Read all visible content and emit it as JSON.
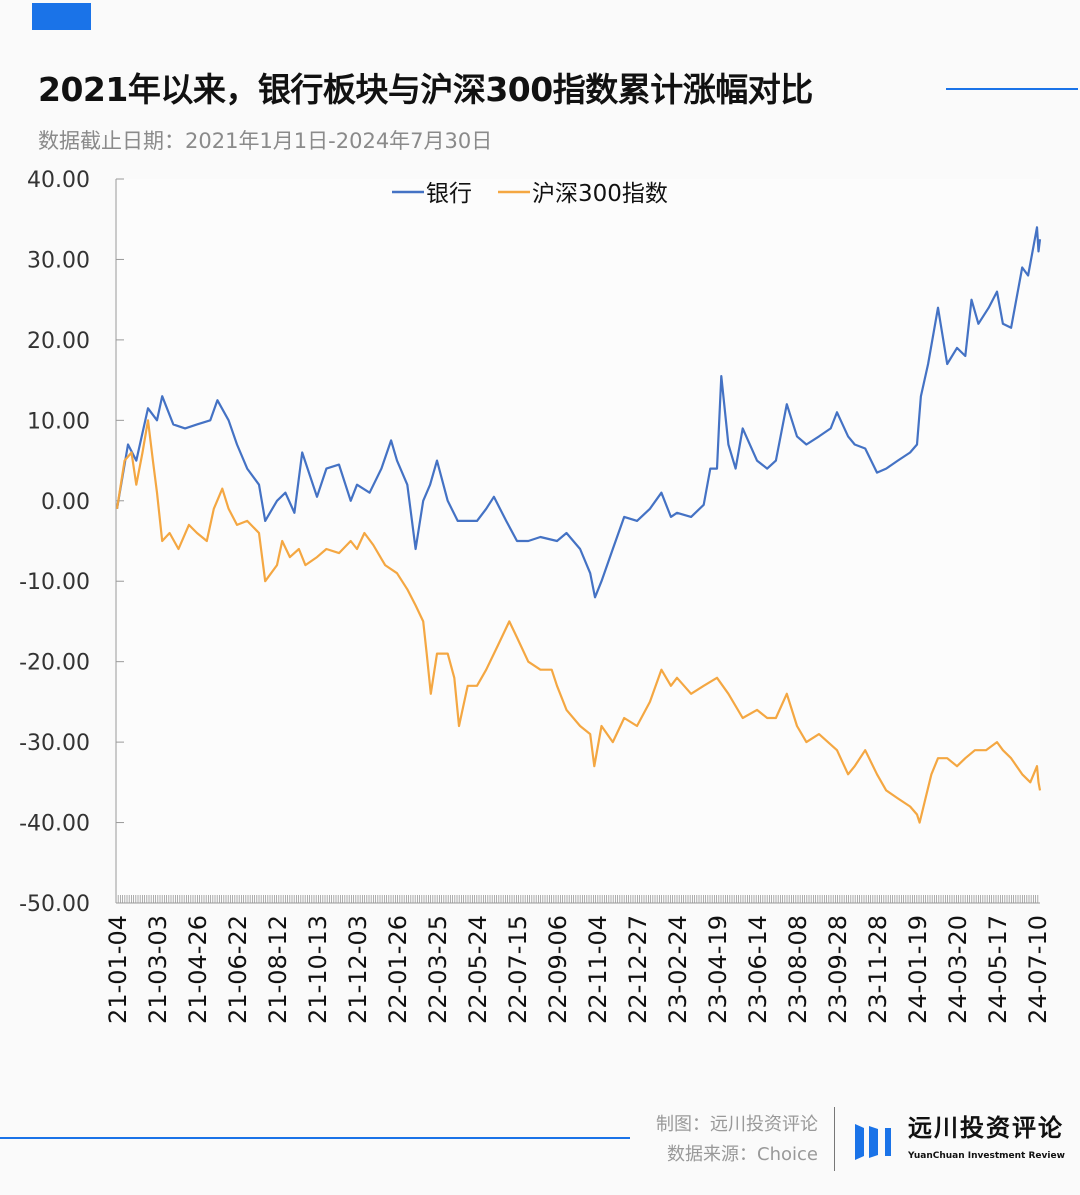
{
  "header": {
    "title": "2021年以来，银行板块与沪深300指数累计涨幅对比",
    "subtitle": "数据截止日期：2021年1月1日-2024年7月30日",
    "accent_color": "#1a73e8"
  },
  "footer": {
    "maker": "制图：远川投资评论",
    "source": "数据来源：Choice",
    "logo_cn": "远川投资评论",
    "logo_en": "YuanChuan Investment Review"
  },
  "chart_data": {
    "type": "line",
    "title": "",
    "xlabel": "",
    "ylabel": "",
    "ylim": [
      -50,
      40
    ],
    "y_ticks": [
      "40.00",
      "30.00",
      "20.00",
      "10.00",
      "0.00",
      "-10.00",
      "-20.00",
      "-30.00",
      "-40.00",
      "-50.00"
    ],
    "y_tick_values": [
      40,
      30,
      20,
      10,
      0,
      -10,
      -20,
      -30,
      -40,
      -50
    ],
    "x_ticks": [
      "21-01-04",
      "21-03-03",
      "21-04-26",
      "21-06-22",
      "21-08-12",
      "21-10-13",
      "21-12-03",
      "22-01-26",
      "22-03-25",
      "22-05-24",
      "22-07-15",
      "22-09-06",
      "22-11-04",
      "22-12-27",
      "23-02-24",
      "23-04-19",
      "23-06-14",
      "23-08-08",
      "23-09-28",
      "23-11-28",
      "24-01-19",
      "24-03-20",
      "24-05-17",
      "24-07-10"
    ],
    "x_end": "24-07-30",
    "grid": false,
    "legend": "top-center",
    "series": [
      {
        "name": "银行",
        "color": "#4472c4",
        "points": [
          [
            "21-01-04",
            -1
          ],
          [
            "21-01-20",
            7
          ],
          [
            "21-02-01",
            5
          ],
          [
            "21-02-18",
            11.5
          ],
          [
            "21-03-03",
            10
          ],
          [
            "21-03-10",
            13
          ],
          [
            "21-03-25",
            9.5
          ],
          [
            "21-04-10",
            9
          ],
          [
            "21-04-26",
            9.5
          ],
          [
            "21-05-15",
            10
          ],
          [
            "21-05-25",
            12.5
          ],
          [
            "21-06-10",
            10
          ],
          [
            "21-06-22",
            7
          ],
          [
            "21-07-05",
            4
          ],
          [
            "21-07-20",
            2
          ],
          [
            "21-07-28",
            -2.5
          ],
          [
            "21-08-12",
            0
          ],
          [
            "21-08-25",
            1
          ],
          [
            "21-09-08",
            -1.5
          ],
          [
            "21-09-20",
            6
          ],
          [
            "21-10-13",
            0.5
          ],
          [
            "21-10-25",
            4
          ],
          [
            "21-11-10",
            4.5
          ],
          [
            "21-11-25",
            0
          ],
          [
            "21-12-03",
            2
          ],
          [
            "21-12-20",
            1
          ],
          [
            "22-01-05",
            4
          ],
          [
            "22-01-18",
            7.5
          ],
          [
            "22-01-26",
            5
          ],
          [
            "22-02-10",
            2
          ],
          [
            "22-02-22",
            -6
          ],
          [
            "22-03-05",
            0
          ],
          [
            "22-03-15",
            2
          ],
          [
            "22-03-25",
            5
          ],
          [
            "22-04-10",
            0
          ],
          [
            "22-04-25",
            -2.5
          ],
          [
            "22-05-10",
            -2.5
          ],
          [
            "22-05-24",
            -2.5
          ],
          [
            "22-06-05",
            -1
          ],
          [
            "22-06-15",
            0.5
          ],
          [
            "22-07-01",
            -2.5
          ],
          [
            "22-07-15",
            -5
          ],
          [
            "22-07-30",
            -5
          ],
          [
            "22-08-15",
            -4.5
          ],
          [
            "22-09-06",
            -5
          ],
          [
            "22-09-20",
            -4
          ],
          [
            "22-10-10",
            -6
          ],
          [
            "22-10-25",
            -9
          ],
          [
            "22-11-01",
            -12
          ],
          [
            "22-11-10",
            -10
          ],
          [
            "22-11-25",
            -6
          ],
          [
            "22-12-10",
            -2
          ],
          [
            "22-12-27",
            -2.5
          ],
          [
            "23-01-15",
            -1
          ],
          [
            "23-02-01",
            1
          ],
          [
            "23-02-15",
            -2
          ],
          [
            "23-02-24",
            -1.5
          ],
          [
            "23-03-15",
            -2
          ],
          [
            "23-04-01",
            -0.5
          ],
          [
            "23-04-10",
            4
          ],
          [
            "23-04-19",
            4
          ],
          [
            "23-04-25",
            15.5
          ],
          [
            "23-05-05",
            7
          ],
          [
            "23-05-15",
            4
          ],
          [
            "23-05-25",
            9
          ],
          [
            "23-06-14",
            5
          ],
          [
            "23-06-28",
            4
          ],
          [
            "23-07-10",
            5
          ],
          [
            "23-07-25",
            12
          ],
          [
            "23-08-08",
            8
          ],
          [
            "23-08-20",
            7
          ],
          [
            "23-09-05",
            8
          ],
          [
            "23-09-20",
            9
          ],
          [
            "23-09-28",
            11
          ],
          [
            "23-10-15",
            8
          ],
          [
            "23-10-25",
            7
          ],
          [
            "23-11-10",
            6.5
          ],
          [
            "23-11-28",
            3.5
          ],
          [
            "23-12-10",
            4
          ],
          [
            "23-12-25",
            5
          ],
          [
            "24-01-10",
            6
          ],
          [
            "24-01-19",
            7
          ],
          [
            "24-01-25",
            13
          ],
          [
            "24-02-05",
            17
          ],
          [
            "24-02-20",
            24
          ],
          [
            "24-03-05",
            17
          ],
          [
            "24-03-20",
            19
          ],
          [
            "24-04-01",
            18
          ],
          [
            "24-04-10",
            25
          ],
          [
            "24-04-20",
            22
          ],
          [
            "24-05-05",
            24
          ],
          [
            "24-05-17",
            26
          ],
          [
            "24-05-25",
            22
          ],
          [
            "24-06-05",
            21.5
          ],
          [
            "24-06-20",
            29
          ],
          [
            "24-06-28",
            28
          ],
          [
            "24-07-10",
            34
          ],
          [
            "24-07-20",
            31
          ],
          [
            "24-07-30",
            32.5
          ]
        ]
      },
      {
        "name": "沪深300指数",
        "color": "#f4a742",
        "points": [
          [
            "21-01-04",
            -1
          ],
          [
            "21-01-15",
            5
          ],
          [
            "21-01-25",
            6
          ],
          [
            "21-02-01",
            2
          ],
          [
            "21-02-10",
            6
          ],
          [
            "21-02-18",
            10
          ],
          [
            "21-02-25",
            5
          ],
          [
            "21-03-03",
            1
          ],
          [
            "21-03-10",
            -5
          ],
          [
            "21-03-20",
            -4
          ],
          [
            "21-04-01",
            -6
          ],
          [
            "21-04-15",
            -3
          ],
          [
            "21-04-26",
            -4
          ],
          [
            "21-05-10",
            -5
          ],
          [
            "21-05-20",
            -1
          ],
          [
            "21-06-01",
            1.5
          ],
          [
            "21-06-10",
            -1
          ],
          [
            "21-06-22",
            -3
          ],
          [
            "21-07-05",
            -2.5
          ],
          [
            "21-07-20",
            -4
          ],
          [
            "21-07-28",
            -10
          ],
          [
            "21-08-12",
            -8
          ],
          [
            "21-08-20",
            -5
          ],
          [
            "21-09-01",
            -7
          ],
          [
            "21-09-15",
            -6
          ],
          [
            "21-09-25",
            -8
          ],
          [
            "21-10-13",
            -7
          ],
          [
            "21-10-25",
            -6
          ],
          [
            "21-11-10",
            -6.5
          ],
          [
            "21-11-25",
            -5
          ],
          [
            "21-12-03",
            -6
          ],
          [
            "21-12-13",
            -4
          ],
          [
            "21-12-25",
            -5.5
          ],
          [
            "22-01-10",
            -8
          ],
          [
            "22-01-26",
            -9
          ],
          [
            "22-02-10",
            -11
          ],
          [
            "22-02-22",
            -13
          ],
          [
            "22-03-05",
            -15
          ],
          [
            "22-03-10",
            -19
          ],
          [
            "22-03-16",
            -24
          ],
          [
            "22-03-25",
            -19
          ],
          [
            "22-04-10",
            -19
          ],
          [
            "22-04-20",
            -22
          ],
          [
            "22-04-27",
            -28
          ],
          [
            "22-05-10",
            -23
          ],
          [
            "22-05-24",
            -23
          ],
          [
            "22-06-05",
            -21
          ],
          [
            "22-06-20",
            -18
          ],
          [
            "22-07-05",
            -15
          ],
          [
            "22-07-15",
            -17
          ],
          [
            "22-07-30",
            -20
          ],
          [
            "22-08-15",
            -21
          ],
          [
            "22-08-30",
            -21
          ],
          [
            "22-09-06",
            -23
          ],
          [
            "22-09-20",
            -26
          ],
          [
            "22-10-10",
            -28
          ],
          [
            "22-10-25",
            -29
          ],
          [
            "22-10-31",
            -33
          ],
          [
            "22-11-10",
            -28
          ],
          [
            "22-11-25",
            -30
          ],
          [
            "22-12-10",
            -27
          ],
          [
            "22-12-27",
            -28
          ],
          [
            "23-01-15",
            -25
          ],
          [
            "23-02-01",
            -21
          ],
          [
            "23-02-15",
            -23
          ],
          [
            "23-02-24",
            -22
          ],
          [
            "23-03-15",
            -24
          ],
          [
            "23-04-01",
            -23
          ],
          [
            "23-04-19",
            -22
          ],
          [
            "23-05-05",
            -24
          ],
          [
            "23-05-25",
            -27
          ],
          [
            "23-06-14",
            -26
          ],
          [
            "23-06-28",
            -27
          ],
          [
            "23-07-10",
            -27
          ],
          [
            "23-07-25",
            -24
          ],
          [
            "23-08-08",
            -28
          ],
          [
            "23-08-20",
            -30
          ],
          [
            "23-09-05",
            -29
          ],
          [
            "23-09-28",
            -31
          ],
          [
            "23-10-15",
            -34
          ],
          [
            "23-10-25",
            -33
          ],
          [
            "23-11-10",
            -31
          ],
          [
            "23-11-28",
            -34
          ],
          [
            "23-12-10",
            -36
          ],
          [
            "23-12-25",
            -37
          ],
          [
            "24-01-10",
            -38
          ],
          [
            "24-01-19",
            -39
          ],
          [
            "24-01-23",
            -40
          ],
          [
            "24-02-01",
            -37
          ],
          [
            "24-02-10",
            -34
          ],
          [
            "24-02-20",
            -32
          ],
          [
            "24-03-05",
            -32
          ],
          [
            "24-03-20",
            -33
          ],
          [
            "24-04-01",
            -32
          ],
          [
            "24-04-15",
            -31
          ],
          [
            "24-05-01",
            -31
          ],
          [
            "24-05-17",
            -30
          ],
          [
            "24-05-25",
            -31
          ],
          [
            "24-06-05",
            -32
          ],
          [
            "24-06-20",
            -34
          ],
          [
            "24-07-01",
            -35
          ],
          [
            "24-07-10",
            -33
          ],
          [
            "24-07-20",
            -35
          ],
          [
            "24-07-30",
            -36
          ]
        ]
      }
    ]
  }
}
